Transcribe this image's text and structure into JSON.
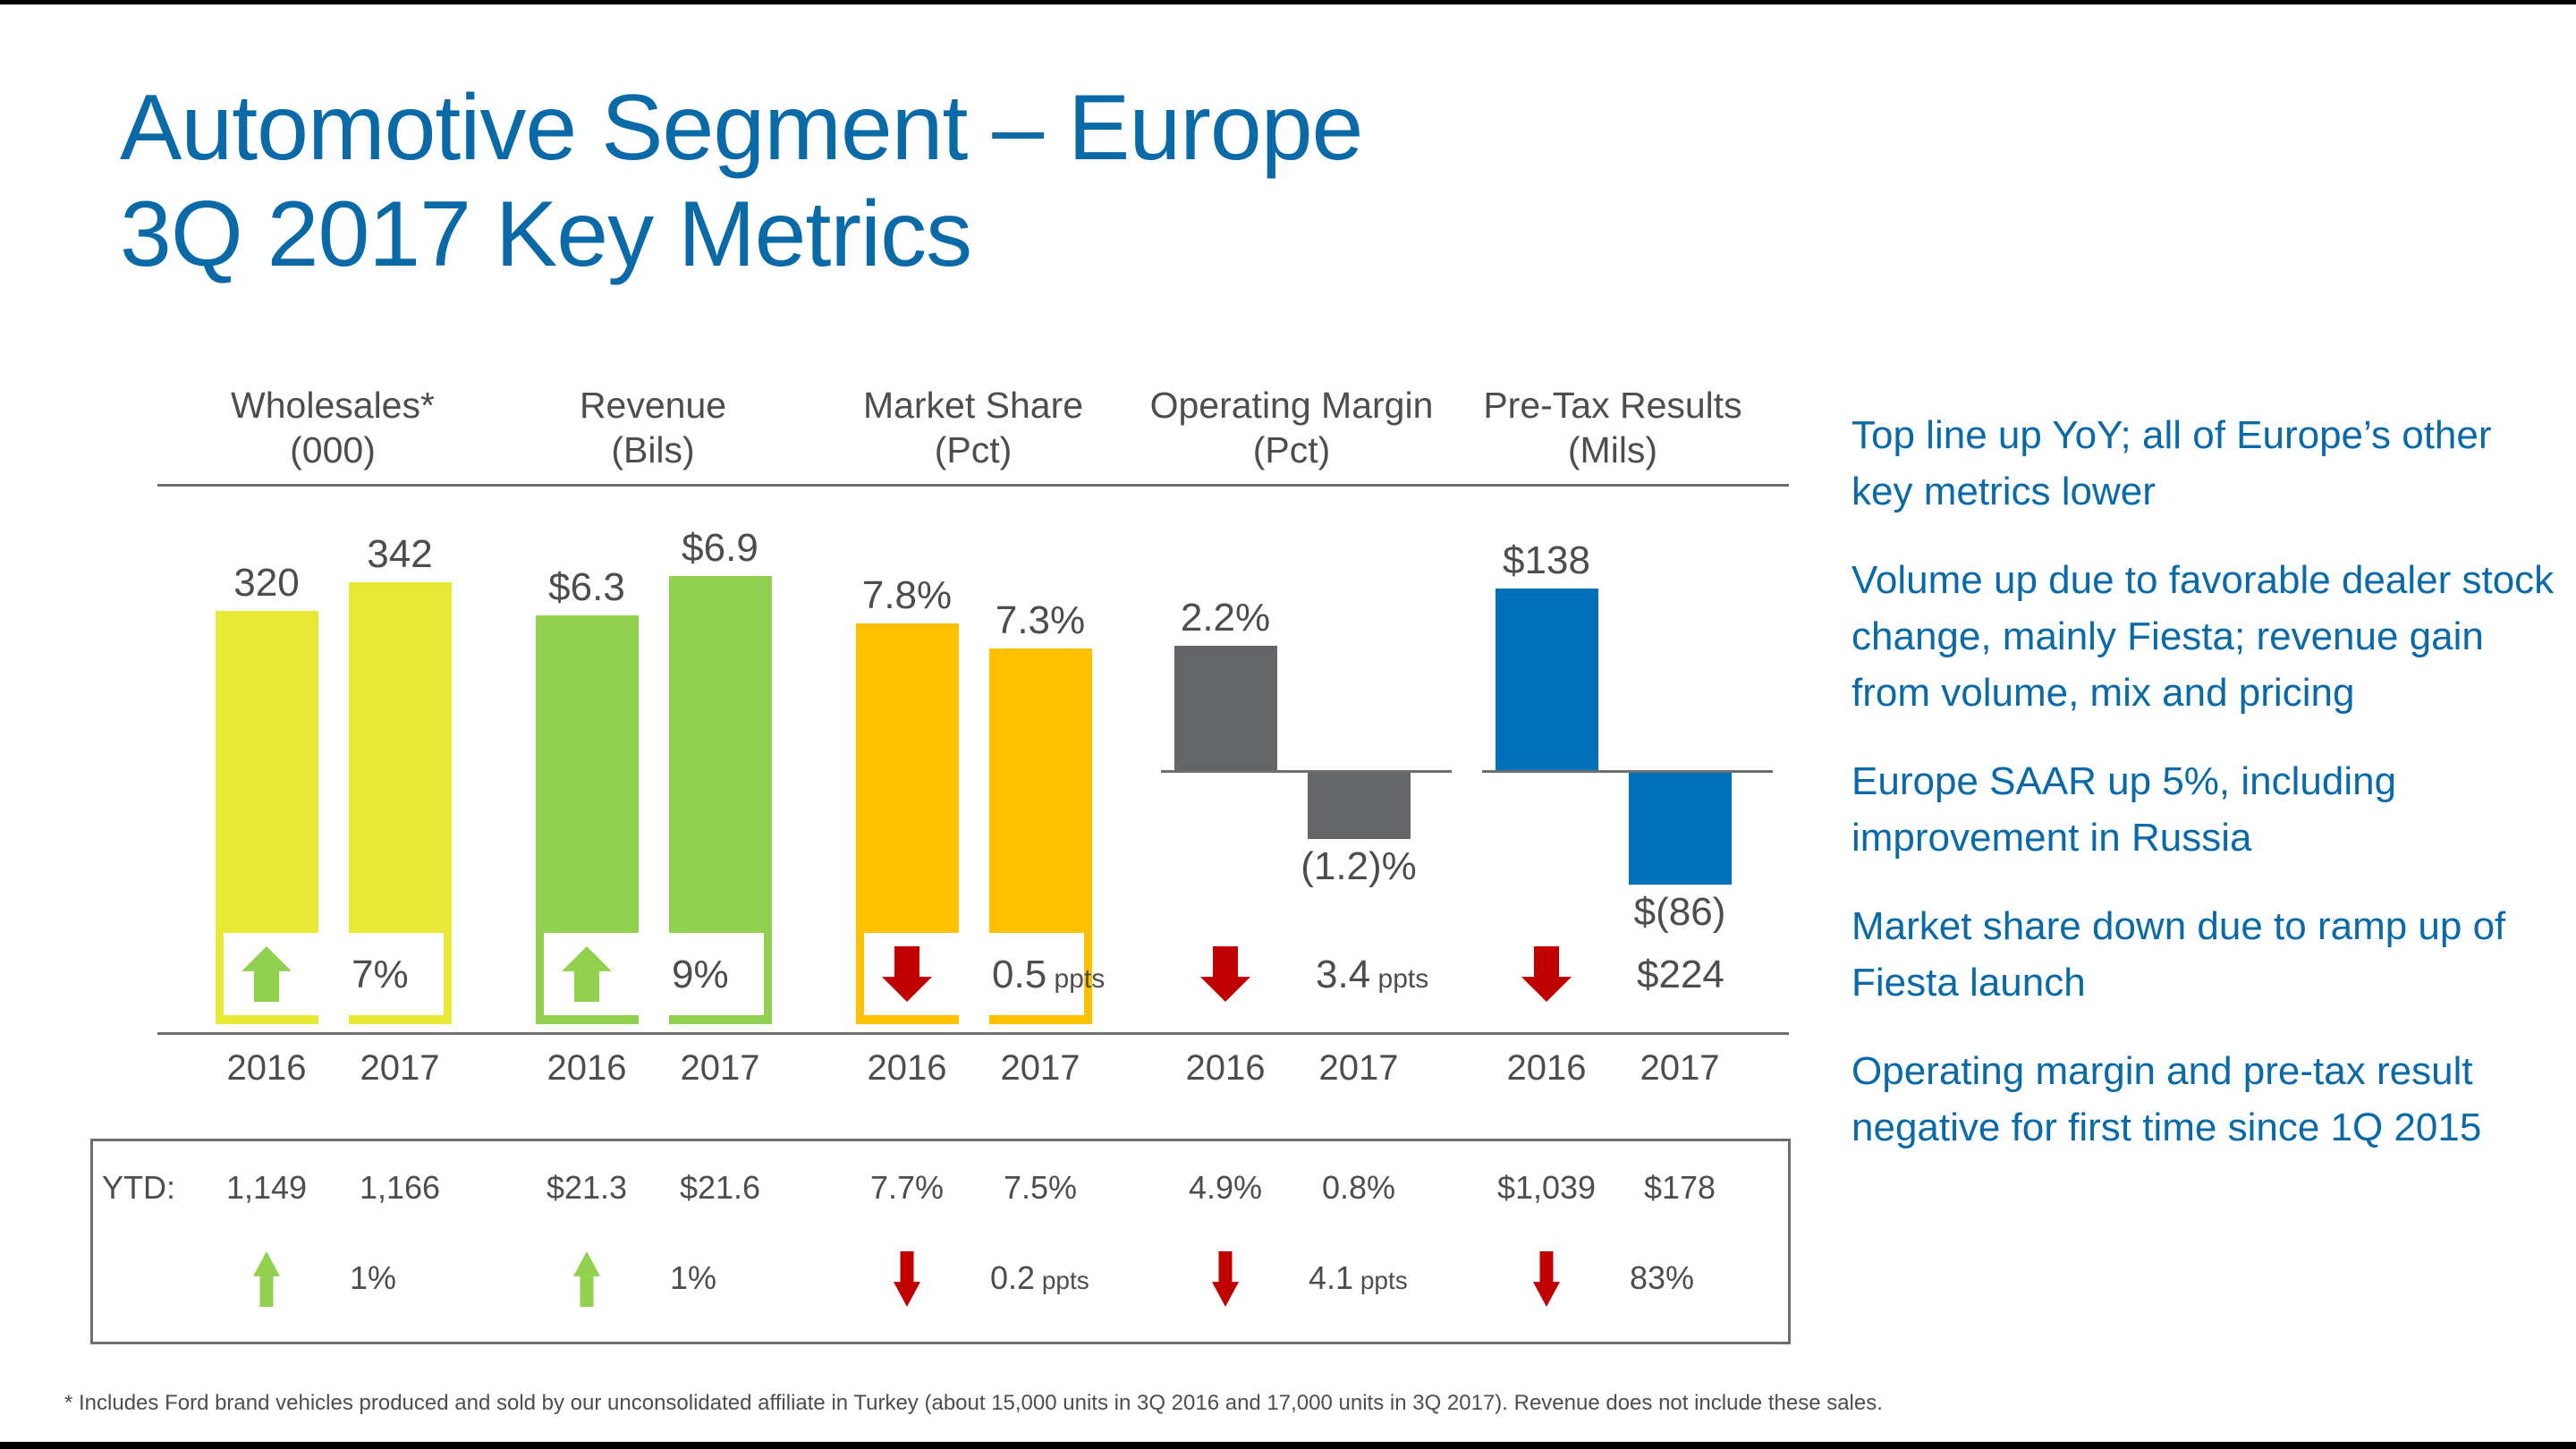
{
  "title": {
    "line1": "Automotive Segment – Europe",
    "line2": "3Q 2017 Key Metrics"
  },
  "colors": {
    "title": "#0a6aa8",
    "up": "#92d050",
    "down": "#c00000"
  },
  "chart_data": {
    "type": "bar",
    "categories": [
      "2016",
      "2017"
    ],
    "groups": [
      {
        "name": "Wholesales*",
        "unit": "(000)",
        "color": "#e6e935",
        "values": [
          320,
          342
        ],
        "labels": [
          "320",
          "342"
        ],
        "change": {
          "direction": "up",
          "value": "7%",
          "unit": ""
        },
        "ytd": {
          "values": [
            "1,149",
            "1,166"
          ],
          "direction": "up",
          "change": "1%",
          "unit": ""
        }
      },
      {
        "name": "Revenue",
        "unit": "(Bils)",
        "color": "#92d050",
        "values": [
          6.3,
          6.9
        ],
        "labels": [
          "$6.3",
          "$6.9"
        ],
        "change": {
          "direction": "up",
          "value": "9%",
          "unit": ""
        },
        "ytd": {
          "values": [
            "$21.3",
            "$21.6"
          ],
          "direction": "up",
          "change": "1%",
          "unit": ""
        }
      },
      {
        "name": "Market Share",
        "unit": "(Pct)",
        "color": "#ffc000",
        "values": [
          7.8,
          7.3
        ],
        "labels": [
          "7.8%",
          "7.3%"
        ],
        "change": {
          "direction": "down",
          "value": "0.5",
          "unit": "ppts"
        },
        "ytd": {
          "values": [
            "7.7%",
            "7.5%"
          ],
          "direction": "down",
          "change": "0.2",
          "unit": "ppts"
        }
      },
      {
        "name": "Operating Margin",
        "unit": "(Pct)",
        "color": "#636569",
        "values": [
          2.2,
          -1.2
        ],
        "labels": [
          "2.2%",
          "(1.2)%"
        ],
        "change": {
          "direction": "down",
          "value": "3.4",
          "unit": "ppts"
        },
        "ytd": {
          "values": [
            "4.9%",
            "0.8%"
          ],
          "direction": "down",
          "change": "4.1",
          "unit": "ppts"
        }
      },
      {
        "name": "Pre-Tax Results",
        "unit": "(Mils)",
        "color": "#0070b8",
        "values": [
          138,
          -86
        ],
        "labels": [
          "$138",
          "$(86)"
        ],
        "change": {
          "direction": "down",
          "value": "$224",
          "unit": ""
        },
        "ytd": {
          "values": [
            "$1,039",
            "$178"
          ],
          "direction": "down",
          "change": "83%",
          "unit": ""
        }
      }
    ]
  },
  "ytd_label": "YTD:",
  "bullets": [
    "Top line up YoY; all of Europe’s other key metrics lower",
    "Volume up due to favorable dealer stock change, mainly Fiesta; revenue gain from volume, mix and pricing",
    "Europe SAAR up 5%, including improvement in Russia",
    "Market share down due to ramp up of Fiesta launch",
    "Operating margin and pre-tax result negative for first time since 1Q 2015"
  ],
  "footnote": "*  Includes Ford brand vehicles produced and sold by our unconsolidated affiliate in Turkey (about 15,000 units in 3Q 2016 and 17,000 units in 3Q 2017).  Revenue does not include these sales."
}
